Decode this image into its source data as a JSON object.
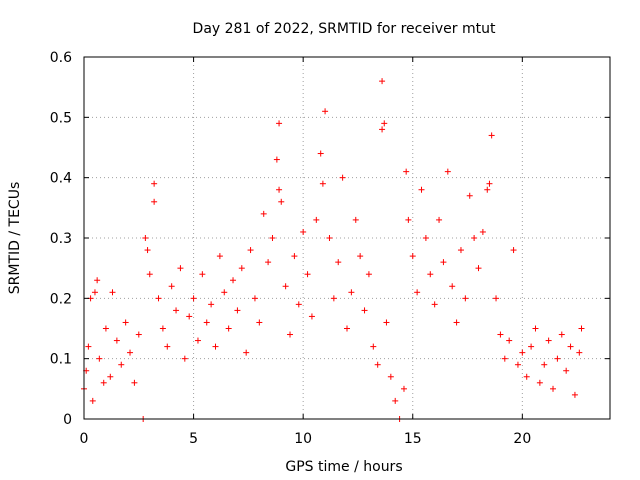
{
  "chart_data": {
    "type": "scatter",
    "title": "Day 281 of 2022, SRMTID for receiver mtut",
    "xlabel": "GPS time / hours",
    "ylabel": "SRMTID / TECUs",
    "xlim": [
      0,
      24
    ],
    "ylim": [
      0,
      0.6
    ],
    "x_ticks": [
      0,
      5,
      10,
      15,
      20
    ],
    "y_ticks": [
      0,
      0.1,
      0.2,
      0.3,
      0.4,
      0.5,
      0.6
    ],
    "x_tick_labels": [
      "0",
      "5",
      "10",
      "15",
      "20"
    ],
    "y_tick_labels": [
      "0",
      "0.1",
      "0.2",
      "0.3",
      "0.4",
      "0.5",
      "0.6"
    ],
    "grid": true,
    "legend": "none",
    "marker": "+",
    "series": [
      {
        "name": "SRMTID",
        "color": "#ff0000",
        "points": [
          [
            0.0,
            0.05
          ],
          [
            0.1,
            0.08
          ],
          [
            0.2,
            0.12
          ],
          [
            0.3,
            0.2
          ],
          [
            0.5,
            0.21
          ],
          [
            0.6,
            0.23
          ],
          [
            0.4,
            0.03
          ],
          [
            0.7,
            0.1
          ],
          [
            0.9,
            0.06
          ],
          [
            1.0,
            0.15
          ],
          [
            1.2,
            0.07
          ],
          [
            1.3,
            0.21
          ],
          [
            1.5,
            0.13
          ],
          [
            1.7,
            0.09
          ],
          [
            1.9,
            0.16
          ],
          [
            2.1,
            0.11
          ],
          [
            2.3,
            0.06
          ],
          [
            2.5,
            0.14
          ],
          [
            2.7,
            0.0
          ],
          [
            2.8,
            0.3
          ],
          [
            2.9,
            0.28
          ],
          [
            3.0,
            0.24
          ],
          [
            3.2,
            0.39
          ],
          [
            3.2,
            0.36
          ],
          [
            3.4,
            0.2
          ],
          [
            3.6,
            0.15
          ],
          [
            3.8,
            0.12
          ],
          [
            4.0,
            0.22
          ],
          [
            4.2,
            0.18
          ],
          [
            4.4,
            0.25
          ],
          [
            4.6,
            0.1
          ],
          [
            4.8,
            0.17
          ],
          [
            5.0,
            0.2
          ],
          [
            5.2,
            0.13
          ],
          [
            5.4,
            0.24
          ],
          [
            5.6,
            0.16
          ],
          [
            5.8,
            0.19
          ],
          [
            6.0,
            0.12
          ],
          [
            6.2,
            0.27
          ],
          [
            6.4,
            0.21
          ],
          [
            6.6,
            0.15
          ],
          [
            6.8,
            0.23
          ],
          [
            7.0,
            0.18
          ],
          [
            7.2,
            0.25
          ],
          [
            7.4,
            0.11
          ],
          [
            7.6,
            0.28
          ],
          [
            7.8,
            0.2
          ],
          [
            8.0,
            0.16
          ],
          [
            8.2,
            0.34
          ],
          [
            8.4,
            0.26
          ],
          [
            8.6,
            0.3
          ],
          [
            8.8,
            0.43
          ],
          [
            8.9,
            0.49
          ],
          [
            8.9,
            0.38
          ],
          [
            9.0,
            0.36
          ],
          [
            9.2,
            0.22
          ],
          [
            9.4,
            0.14
          ],
          [
            9.6,
            0.27
          ],
          [
            9.8,
            0.19
          ],
          [
            10.0,
            0.31
          ],
          [
            10.2,
            0.24
          ],
          [
            10.4,
            0.17
          ],
          [
            10.6,
            0.33
          ],
          [
            10.8,
            0.44
          ],
          [
            10.9,
            0.39
          ],
          [
            11.0,
            0.51
          ],
          [
            11.2,
            0.3
          ],
          [
            11.4,
            0.2
          ],
          [
            11.6,
            0.26
          ],
          [
            11.8,
            0.4
          ],
          [
            12.0,
            0.15
          ],
          [
            12.2,
            0.21
          ],
          [
            12.4,
            0.33
          ],
          [
            12.6,
            0.27
          ],
          [
            12.8,
            0.18
          ],
          [
            13.0,
            0.24
          ],
          [
            13.2,
            0.12
          ],
          [
            13.4,
            0.09
          ],
          [
            13.6,
            0.56
          ],
          [
            13.7,
            0.49
          ],
          [
            13.6,
            0.48
          ],
          [
            13.8,
            0.16
          ],
          [
            14.0,
            0.07
          ],
          [
            14.2,
            0.03
          ],
          [
            14.4,
            0.0
          ],
          [
            14.6,
            0.05
          ],
          [
            14.7,
            0.41
          ],
          [
            14.8,
            0.33
          ],
          [
            15.0,
            0.27
          ],
          [
            15.2,
            0.21
          ],
          [
            15.4,
            0.38
          ],
          [
            15.6,
            0.3
          ],
          [
            15.8,
            0.24
          ],
          [
            16.0,
            0.19
          ],
          [
            16.2,
            0.33
          ],
          [
            16.4,
            0.26
          ],
          [
            16.6,
            0.41
          ],
          [
            16.8,
            0.22
          ],
          [
            17.0,
            0.16
          ],
          [
            17.2,
            0.28
          ],
          [
            17.4,
            0.2
          ],
          [
            17.6,
            0.37
          ],
          [
            17.8,
            0.3
          ],
          [
            18.0,
            0.25
          ],
          [
            18.2,
            0.31
          ],
          [
            18.4,
            0.38
          ],
          [
            18.5,
            0.39
          ],
          [
            18.6,
            0.47
          ],
          [
            18.8,
            0.2
          ],
          [
            19.0,
            0.14
          ],
          [
            19.2,
            0.1
          ],
          [
            19.4,
            0.13
          ],
          [
            19.6,
            0.28
          ],
          [
            19.8,
            0.09
          ],
          [
            20.0,
            0.11
          ],
          [
            20.2,
            0.07
          ],
          [
            20.4,
            0.12
          ],
          [
            20.6,
            0.15
          ],
          [
            20.8,
            0.06
          ],
          [
            21.0,
            0.09
          ],
          [
            21.2,
            0.13
          ],
          [
            21.4,
            0.05
          ],
          [
            21.6,
            0.1
          ],
          [
            21.8,
            0.14
          ],
          [
            22.0,
            0.08
          ],
          [
            22.2,
            0.12
          ],
          [
            22.4,
            0.04
          ],
          [
            22.6,
            0.11
          ],
          [
            22.7,
            0.15
          ]
        ]
      }
    ]
  }
}
